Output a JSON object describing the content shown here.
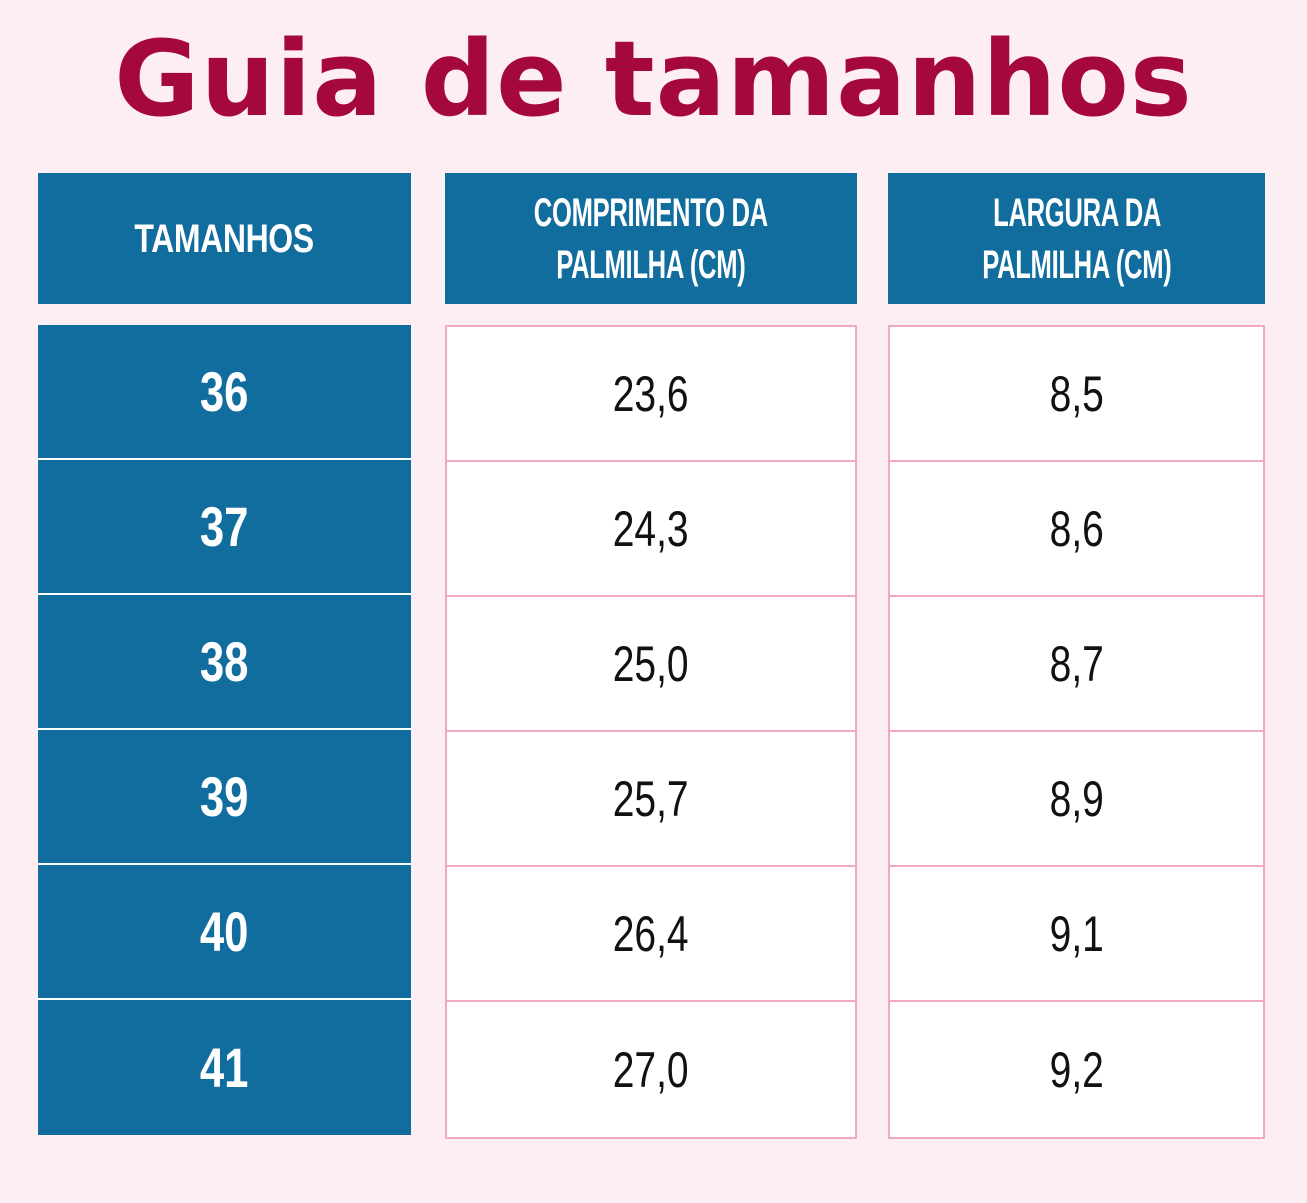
{
  "title": "Guia de tamanhos",
  "colors": {
    "background": "#fdeef3",
    "title": "#a5083f",
    "header_fill": "#116d9e",
    "cell_border": "#f0a8c4"
  },
  "table": {
    "headers": {
      "sizes": "TAMANHOS",
      "length_line1": "COMPRIMENTO DA",
      "length_line2": "PALMILHA (CM)",
      "width_line1": "LARGURA DA",
      "width_line2": "PALMILHA (CM)"
    },
    "rows": [
      {
        "size": "36",
        "length": "23,6",
        "width": "8,5"
      },
      {
        "size": "37",
        "length": "24,3",
        "width": "8,6"
      },
      {
        "size": "38",
        "length": "25,0",
        "width": "8,7"
      },
      {
        "size": "39",
        "length": "25,7",
        "width": "8,9"
      },
      {
        "size": "40",
        "length": "26,4",
        "width": "9,1"
      },
      {
        "size": "41",
        "length": "27,0",
        "width": "9,2"
      }
    ]
  }
}
